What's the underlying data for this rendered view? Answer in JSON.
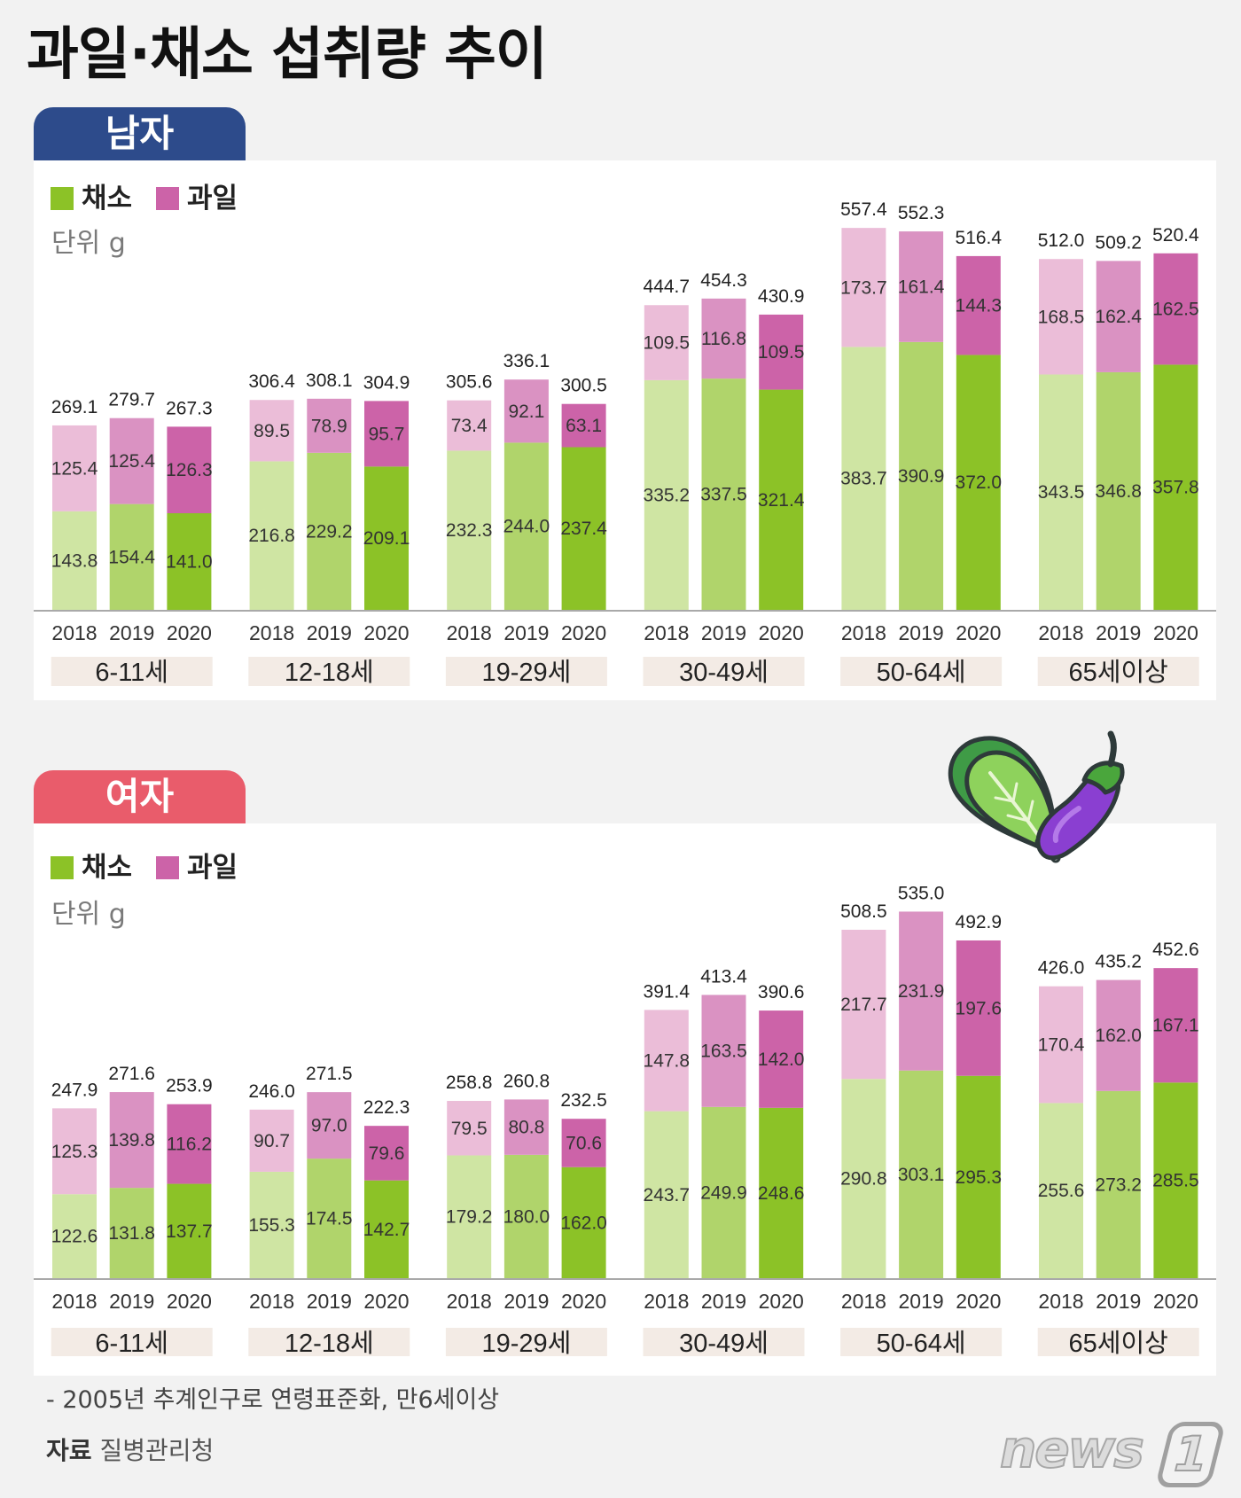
{
  "title": "과일·채소 섭취량 추이",
  "colors": {
    "background": "#f2f2f2",
    "panel": "#ffffff",
    "tab_male": "#2d4b8b",
    "tab_female": "#e95c6b",
    "legend_vegetable": "#8cc227",
    "legend_fruit": "#cc63a8",
    "vegetable": [
      "#cfe5a3",
      "#b0d46b",
      "#8cc227"
    ],
    "fruit": [
      "#ebbdd8",
      "#da92c2",
      "#cc63a8"
    ],
    "age_box": "#f3ebe5"
  },
  "chart_data": [
    {
      "type": "bar",
      "stacked": true,
      "tab": "남자",
      "unit": "단위 g",
      "legend_placement": "top-left",
      "grid": false,
      "ylim": [
        0,
        600
      ],
      "categories": [
        "6-11세",
        "12-18세",
        "19-29세",
        "30-49세",
        "50-64세",
        "65세이상"
      ],
      "years": [
        "2018",
        "2019",
        "2020"
      ],
      "series": [
        {
          "name": "채소",
          "values": [
            [
              143.8,
              154.4,
              141.0
            ],
            [
              216.8,
              229.2,
              209.1
            ],
            [
              232.3,
              244.0,
              237.4
            ],
            [
              335.2,
              337.5,
              321.4
            ],
            [
              383.7,
              390.9,
              372.0
            ],
            [
              343.5,
              346.8,
              357.8
            ]
          ]
        },
        {
          "name": "과일",
          "values": [
            [
              125.4,
              125.4,
              126.3
            ],
            [
              89.5,
              78.9,
              95.7
            ],
            [
              73.4,
              92.1,
              63.1
            ],
            [
              109.5,
              116.8,
              109.5
            ],
            [
              173.7,
              161.4,
              144.3
            ],
            [
              168.5,
              162.4,
              162.5
            ]
          ]
        }
      ],
      "totals": [
        [
          269.1,
          279.7,
          267.3
        ],
        [
          306.4,
          308.1,
          304.9
        ],
        [
          305.6,
          336.1,
          300.5
        ],
        [
          444.7,
          454.3,
          430.9
        ],
        [
          557.4,
          552.3,
          516.4
        ],
        [
          512.0,
          509.2,
          520.4
        ]
      ]
    },
    {
      "type": "bar",
      "stacked": true,
      "tab": "여자",
      "unit": "단위 g",
      "legend_placement": "top-left",
      "grid": false,
      "ylim": [
        0,
        600
      ],
      "categories": [
        "6-11세",
        "12-18세",
        "19-29세",
        "30-49세",
        "50-64세",
        "65세이상"
      ],
      "years": [
        "2018",
        "2019",
        "2020"
      ],
      "series": [
        {
          "name": "채소",
          "values": [
            [
              122.6,
              131.8,
              137.7
            ],
            [
              155.3,
              174.5,
              142.7
            ],
            [
              179.2,
              180.0,
              162.0
            ],
            [
              243.7,
              249.9,
              248.6
            ],
            [
              290.8,
              303.1,
              295.3
            ],
            [
              255.6,
              273.2,
              285.5
            ]
          ]
        },
        {
          "name": "과일",
          "values": [
            [
              125.3,
              139.8,
              116.2
            ],
            [
              90.7,
              97.0,
              79.6
            ],
            [
              79.5,
              80.8,
              70.6
            ],
            [
              147.8,
              163.5,
              142.0
            ],
            [
              217.7,
              231.9,
              197.6
            ],
            [
              170.4,
              162.0,
              167.1
            ]
          ]
        }
      ],
      "totals": [
        [
          247.9,
          271.6,
          253.9
        ],
        [
          246.0,
          271.5,
          222.3
        ],
        [
          258.8,
          260.8,
          232.5
        ],
        [
          391.4,
          413.4,
          390.6
        ],
        [
          508.5,
          535.0,
          492.9
        ],
        [
          426.0,
          435.2,
          452.6
        ]
      ]
    }
  ],
  "footnote": "- 2005년 추계인구로 연령표준화, 만6세이상",
  "source": {
    "label": "자료",
    "value": "질병관리청"
  },
  "logo": {
    "word": "news",
    "digit": "1"
  },
  "illustration": {
    "icons": [
      "bok-choy-icon",
      "eggplant-icon"
    ]
  }
}
